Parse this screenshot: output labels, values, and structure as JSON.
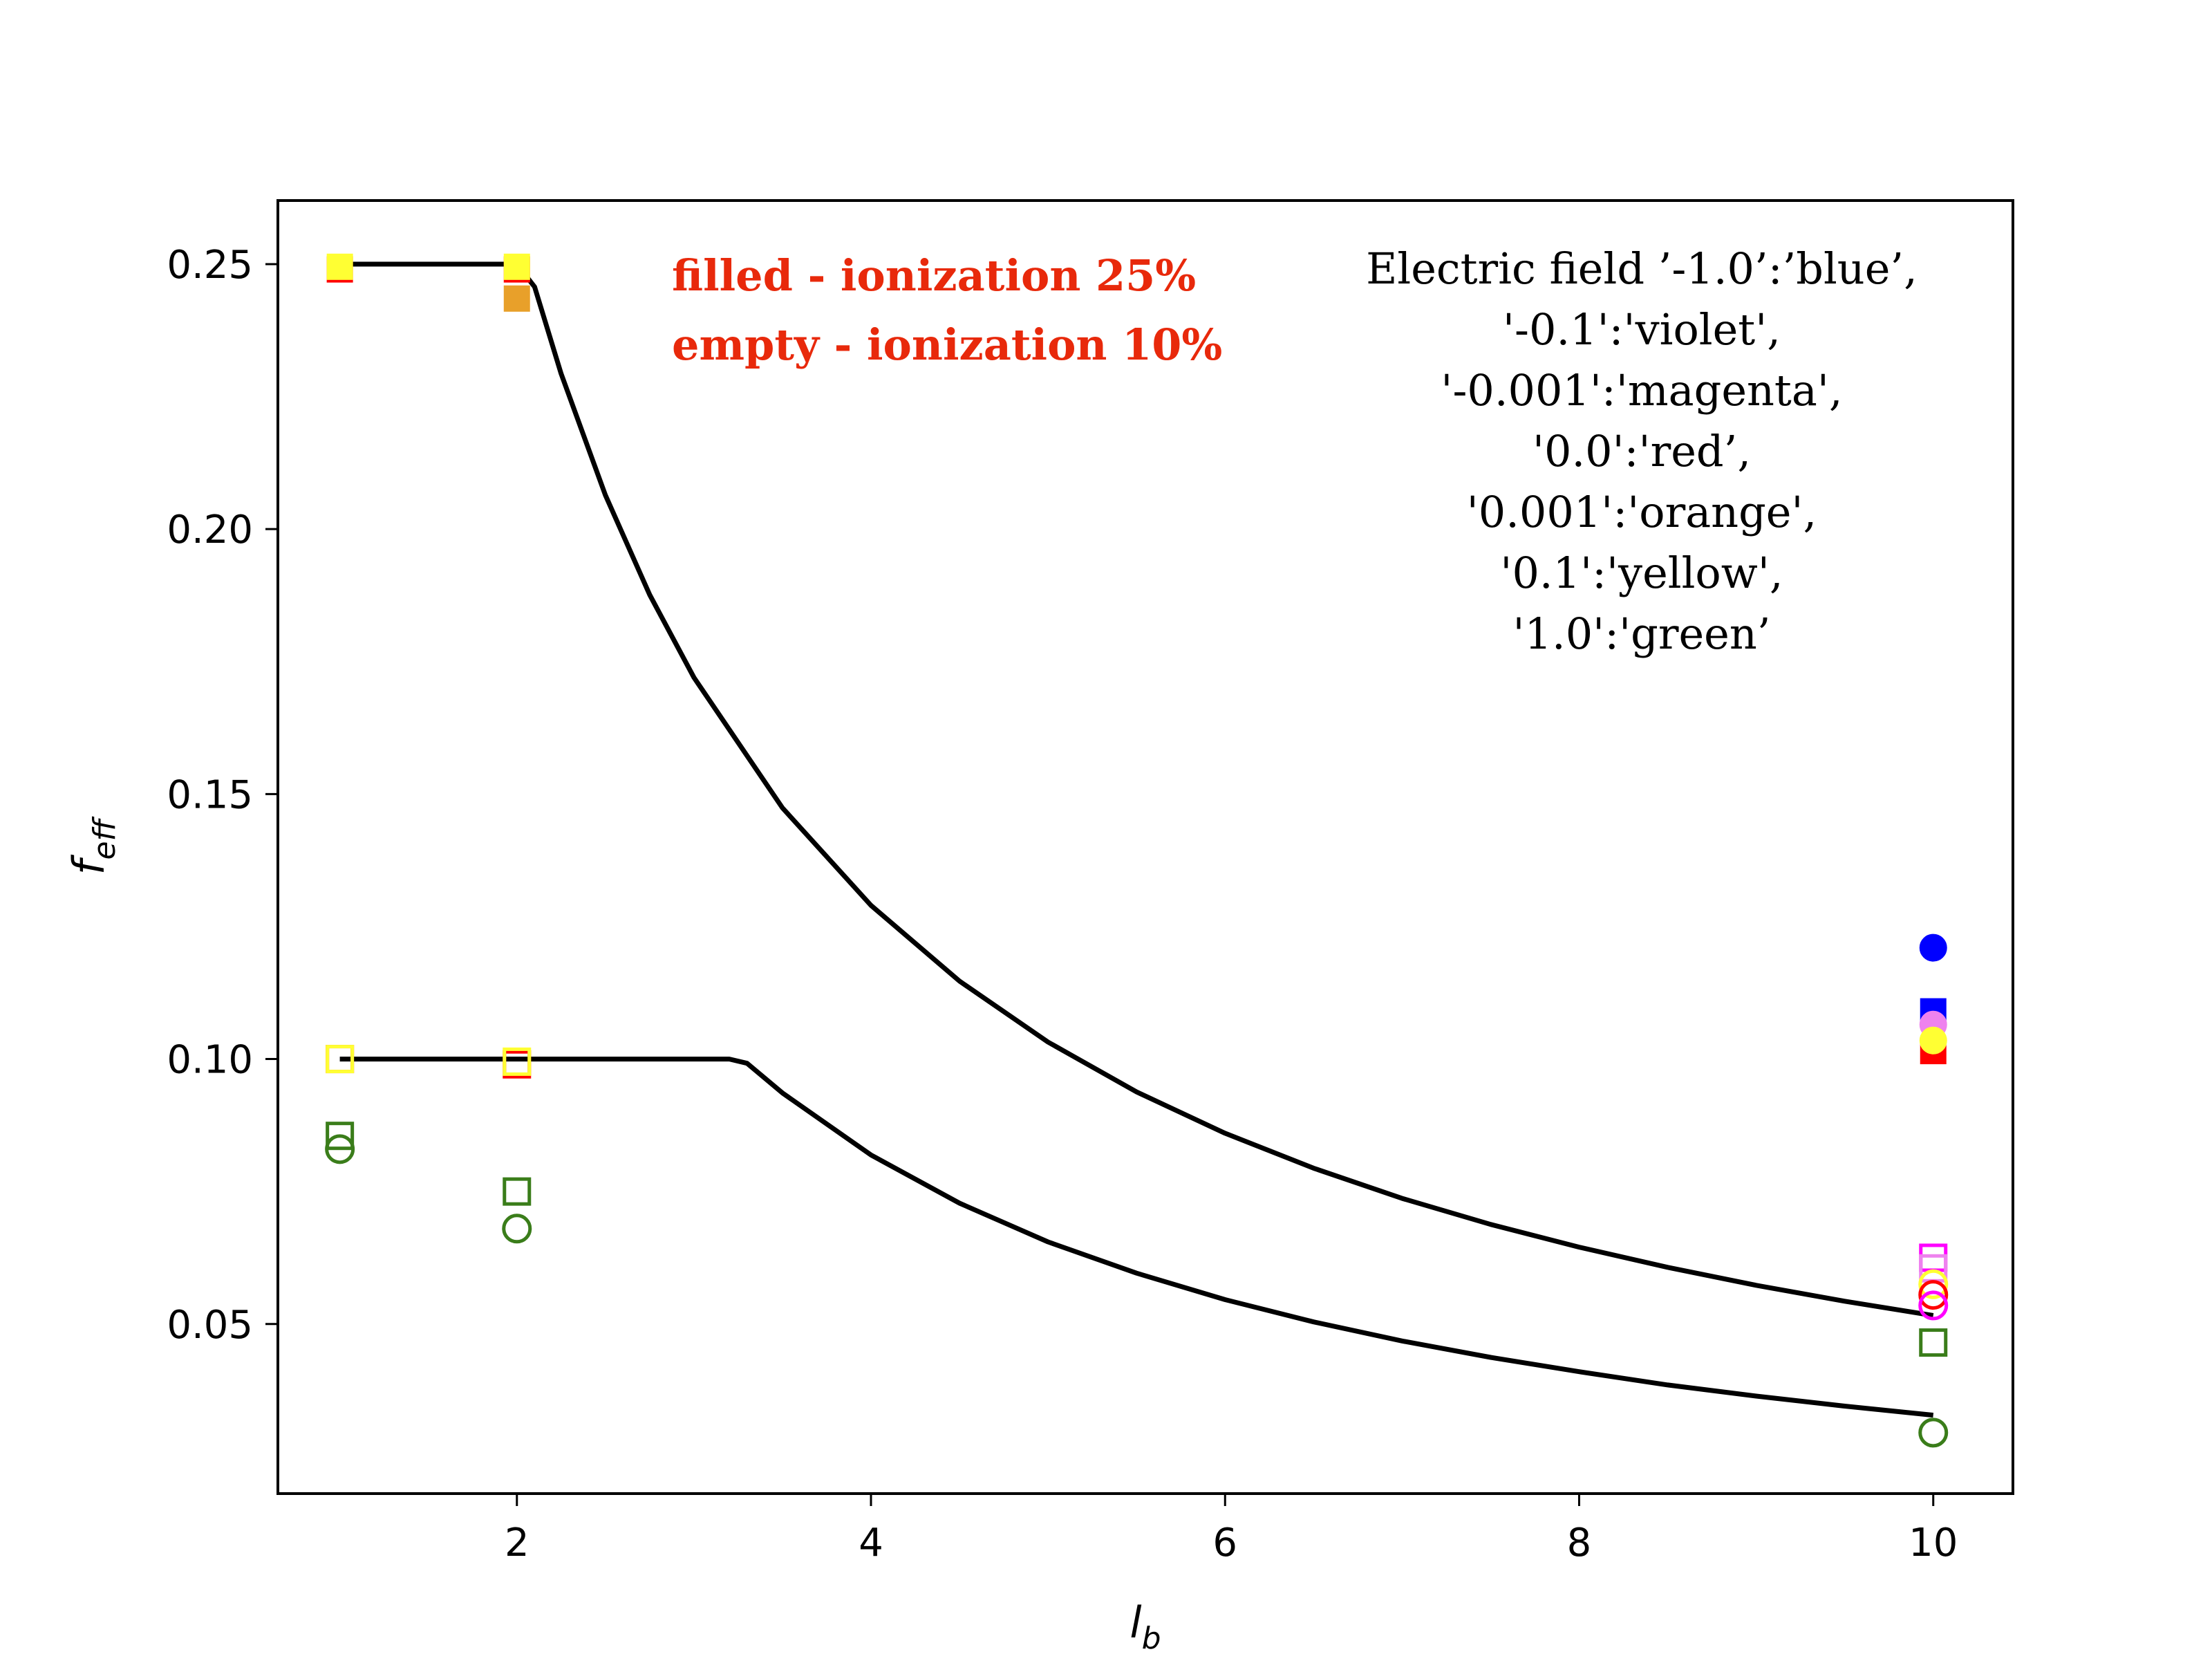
{
  "chart_data": {
    "type": "scatter",
    "xlabel": "l",
    "xlabel_sub": "b",
    "ylabel": "f",
    "ylabel_sub": "eff",
    "xlim": [
      0.65,
      10.45
    ],
    "ylim": [
      0.018,
      0.262
    ],
    "xticks": [
      2,
      4,
      6,
      8,
      10
    ],
    "yticks": [
      0.05,
      0.1,
      0.15,
      0.2,
      0.25
    ],
    "xtick_labels": [
      "2",
      "4",
      "6",
      "8",
      "10"
    ],
    "ytick_labels": [
      "0.05",
      "0.10",
      "0.15",
      "0.20",
      "0.25"
    ],
    "annotations": {
      "fill_note": [
        "filled - ionization 25%",
        "empty - ionization 10%"
      ],
      "legend_note": [
        "Electric field ’-1.0’:’blue’,",
        "'-0.1':'violet',",
        "'-0.001':'magenta',",
        "'0.0':'red’,",
        "'0.001':'orange',",
        "'0.1':'yellow',",
        "'1.0':'green’"
      ]
    },
    "colors": {
      "-1.0": "#0000ff",
      "-0.1": "#ee82ee",
      "-0.001": "#ff00ff",
      "0.0": "#ff0000",
      "0.001": "#e8a02a",
      "0.1": "#ffff33",
      "1.0": "#3a7d1a",
      "curve": "#000000"
    },
    "series": [
      {
        "name": "curve-25",
        "kind": "line",
        "points": [
          [
            1,
            0.25
          ],
          [
            2,
            0.25
          ],
          [
            2.1,
            0.2457
          ],
          [
            2.25,
            0.2293
          ],
          [
            2.5,
            0.2064
          ],
          [
            2.75,
            0.1876
          ],
          [
            3,
            0.172
          ],
          [
            3.5,
            0.1474
          ],
          [
            4,
            0.129
          ],
          [
            4.5,
            0.1147
          ],
          [
            5,
            0.1032
          ],
          [
            5.5,
            0.0938
          ],
          [
            6,
            0.086
          ],
          [
            6.5,
            0.0794
          ],
          [
            7,
            0.0737
          ],
          [
            7.5,
            0.0688
          ],
          [
            8,
            0.0645
          ],
          [
            8.5,
            0.0607
          ],
          [
            9,
            0.0573
          ],
          [
            9.5,
            0.0543
          ],
          [
            10,
            0.0516
          ]
        ]
      },
      {
        "name": "curve-10",
        "kind": "line",
        "points": [
          [
            1,
            0.1
          ],
          [
            3.2,
            0.1
          ],
          [
            3.3,
            0.0992
          ],
          [
            3.5,
            0.0936
          ],
          [
            4,
            0.0819
          ],
          [
            4.5,
            0.0728
          ],
          [
            5,
            0.0655
          ],
          [
            5.5,
            0.0596
          ],
          [
            6,
            0.0546
          ],
          [
            6.5,
            0.0504
          ],
          [
            7,
            0.0468
          ],
          [
            7.5,
            0.0437
          ],
          [
            8,
            0.041
          ],
          [
            8.5,
            0.0385
          ],
          [
            9,
            0.0364
          ],
          [
            9.5,
            0.0345
          ],
          [
            10,
            0.0328
          ]
        ]
      },
      {
        "name": "red-square-filled",
        "color": "0.0",
        "marker": "square",
        "filled": true,
        "points": [
          [
            1,
            0.249
          ],
          [
            2,
            0.249
          ],
          [
            10,
            0.1015
          ]
        ]
      },
      {
        "name": "yellow-square-filled",
        "color": "0.1",
        "marker": "square",
        "filled": true,
        "points": [
          [
            1,
            0.2495
          ],
          [
            2,
            0.2495
          ]
        ]
      },
      {
        "name": "orange-square-filled",
        "color": "0.001",
        "marker": "square",
        "filled": true,
        "points": [
          [
            2,
            0.2435
          ]
        ]
      },
      {
        "name": "blue-circle-filled",
        "color": "-1.0",
        "marker": "circle",
        "filled": true,
        "points": [
          [
            10,
            0.121
          ]
        ]
      },
      {
        "name": "blue-square-filled",
        "color": "-1.0",
        "marker": "square",
        "filled": true,
        "points": [
          [
            10,
            0.109
          ]
        ]
      },
      {
        "name": "violet-circle-filled",
        "color": "-0.1",
        "marker": "circle",
        "filled": true,
        "points": [
          [
            10,
            0.1065
          ]
        ]
      },
      {
        "name": "yellow-circle-filled",
        "color": "0.1",
        "marker": "circle",
        "filled": true,
        "points": [
          [
            10,
            0.1035
          ]
        ]
      },
      {
        "name": "red-square-empty",
        "color": "0.0",
        "marker": "square",
        "filled": false,
        "points": [
          [
            1,
            0.1
          ],
          [
            2,
            0.099
          ]
        ]
      },
      {
        "name": "yellow-square-empty",
        "color": "0.1",
        "marker": "square",
        "filled": false,
        "points": [
          [
            1,
            0.1
          ],
          [
            2,
            0.0995
          ]
        ]
      },
      {
        "name": "green-square-empty",
        "color": "1.0",
        "marker": "square",
        "filled": false,
        "points": [
          [
            1,
            0.0855
          ],
          [
            2,
            0.075
          ],
          [
            10,
            0.0465
          ]
        ]
      },
      {
        "name": "green-circle-empty",
        "color": "1.0",
        "marker": "circle",
        "filled": false,
        "points": [
          [
            1,
            0.083
          ],
          [
            2,
            0.068
          ],
          [
            10,
            0.0295
          ]
        ]
      },
      {
        "name": "magenta-square-empty",
        "color": "-0.001",
        "marker": "square",
        "filled": false,
        "points": [
          [
            10,
            0.0625
          ]
        ]
      },
      {
        "name": "violet-square-empty",
        "color": "-0.1",
        "marker": "square",
        "filled": false,
        "points": [
          [
            10,
            0.0605
          ]
        ]
      },
      {
        "name": "yellow-circle-empty",
        "color": "0.1",
        "marker": "circle",
        "filled": false,
        "points": [
          [
            10,
            0.0575
          ]
        ]
      },
      {
        "name": "red-circle-empty",
        "color": "0.0",
        "marker": "circle",
        "filled": false,
        "points": [
          [
            10,
            0.0555
          ]
        ]
      },
      {
        "name": "magenta-circle-empty",
        "color": "-0.001",
        "marker": "circle",
        "filled": false,
        "points": [
          [
            10,
            0.0535
          ]
        ]
      }
    ]
  }
}
